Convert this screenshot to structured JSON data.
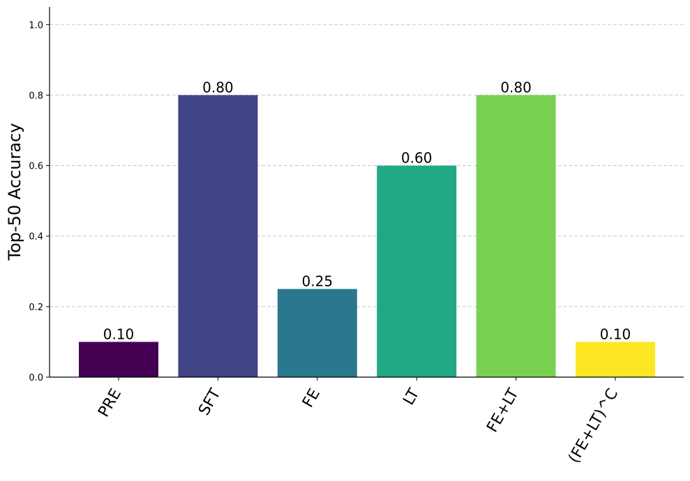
{
  "chart_data": {
    "type": "bar",
    "categories": [
      "PRE",
      "SFT",
      "FE",
      "LT",
      "FE+LT",
      "(FE+LT)^C"
    ],
    "values": [
      0.1,
      0.8,
      0.25,
      0.6,
      0.8,
      0.1
    ],
    "data_labels": [
      "0.10",
      "0.80",
      "0.25",
      "0.60",
      "0.80",
      "0.10"
    ],
    "colors": [
      "#440154",
      "#414487",
      "#2a788e",
      "#22a884",
      "#7ad151",
      "#fde725"
    ],
    "title": "",
    "xlabel": "",
    "ylabel": "Top-50 Accuracy",
    "ylim": [
      0,
      1.05
    ],
    "yticks": [
      0.0,
      0.2,
      0.4,
      0.6,
      0.8,
      1.0
    ],
    "ytick_labels": [
      "0.0",
      "0.2",
      "0.4",
      "0.6",
      "0.8",
      "1.0"
    ],
    "grid": "y-dashed",
    "legend": "none"
  }
}
